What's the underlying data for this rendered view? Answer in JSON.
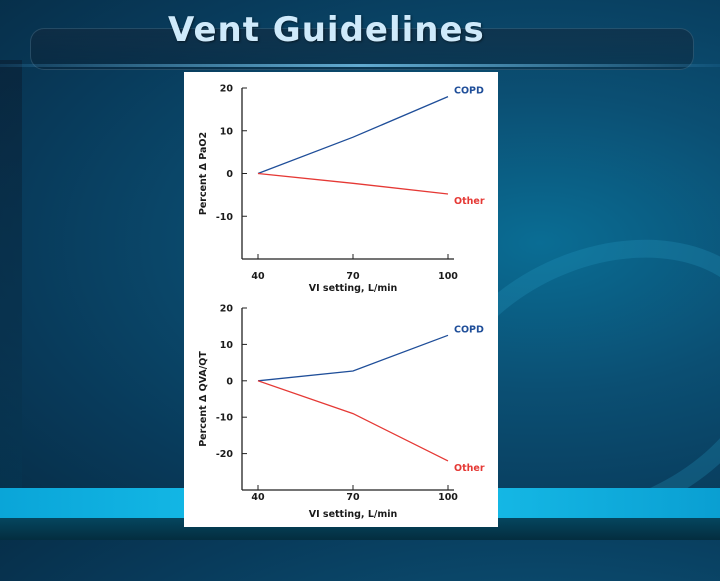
{
  "slide": {
    "title": "Vent Guidelines"
  },
  "chart_data": [
    {
      "type": "line",
      "title": "",
      "xlabel": "VI setting, L/min",
      "ylabel": "Percent Δ PaO2",
      "xlim": [
        40,
        100
      ],
      "ylim": [
        -20,
        20
      ],
      "x_ticks": [
        40,
        70,
        100
      ],
      "y_ticks": [
        20,
        10,
        0,
        -10
      ],
      "grid": false,
      "legend": "inline-right",
      "series": [
        {
          "name": "COPD",
          "color": "#1f4e99",
          "x": [
            40,
            70,
            100
          ],
          "y": [
            0,
            8.5,
            18
          ]
        },
        {
          "name": "Other",
          "color": "#e53935",
          "x": [
            40,
            70,
            100
          ],
          "y": [
            0,
            -2.3,
            -4.8
          ]
        }
      ]
    },
    {
      "type": "line",
      "title": "",
      "xlabel": "VI setting, L/min",
      "ylabel": "Percent Δ QVA/QT",
      "xlim": [
        40,
        100
      ],
      "ylim": [
        -30,
        20
      ],
      "x_ticks": [
        40,
        70,
        100
      ],
      "y_ticks": [
        20,
        10,
        0,
        -10,
        -20
      ],
      "grid": false,
      "legend": "inline-right",
      "series": [
        {
          "name": "COPD",
          "color": "#1f4e99",
          "x": [
            40,
            70,
            100
          ],
          "y": [
            0,
            2.7,
            12.5
          ]
        },
        {
          "name": "Other",
          "color": "#e53935",
          "x": [
            40,
            70,
            100
          ],
          "y": [
            0,
            -9,
            -22
          ]
        }
      ]
    }
  ]
}
